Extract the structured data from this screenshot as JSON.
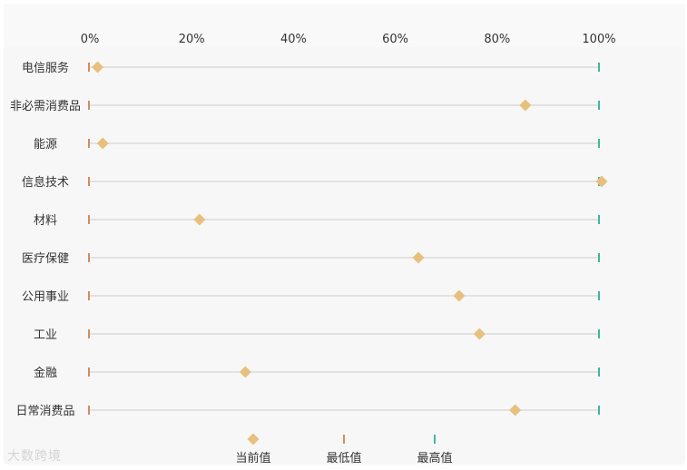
{
  "chart_data": {
    "type": "dot-range",
    "x_ticks": [
      "0%",
      "20%",
      "40%",
      "60%",
      "80%",
      "100%"
    ],
    "xlim": [
      0,
      100
    ],
    "categories": [
      "电信服务",
      "非必需消费品",
      "能源",
      "信息技术",
      "材料",
      "医疗保健",
      "公用事业",
      "工业",
      "金融",
      "日常消费品"
    ],
    "series": [
      {
        "name": "当前值",
        "values": [
          1,
          85,
          2,
          100,
          21,
          64,
          72,
          76,
          30,
          83
        ]
      },
      {
        "name": "最低值",
        "values": [
          0,
          0,
          0,
          0,
          0,
          0,
          0,
          0,
          0,
          0
        ]
      },
      {
        "name": "最高值",
        "values": [
          100,
          100,
          100,
          100,
          100,
          100,
          100,
          100,
          100,
          100
        ]
      }
    ],
    "legend_position": "bottom",
    "colors": {
      "current": "#e8c07e",
      "min": "#cf8e62",
      "max": "#3db89a",
      "track": "#dcdcdc",
      "text": "#333333"
    }
  },
  "watermark": "大数跨境"
}
